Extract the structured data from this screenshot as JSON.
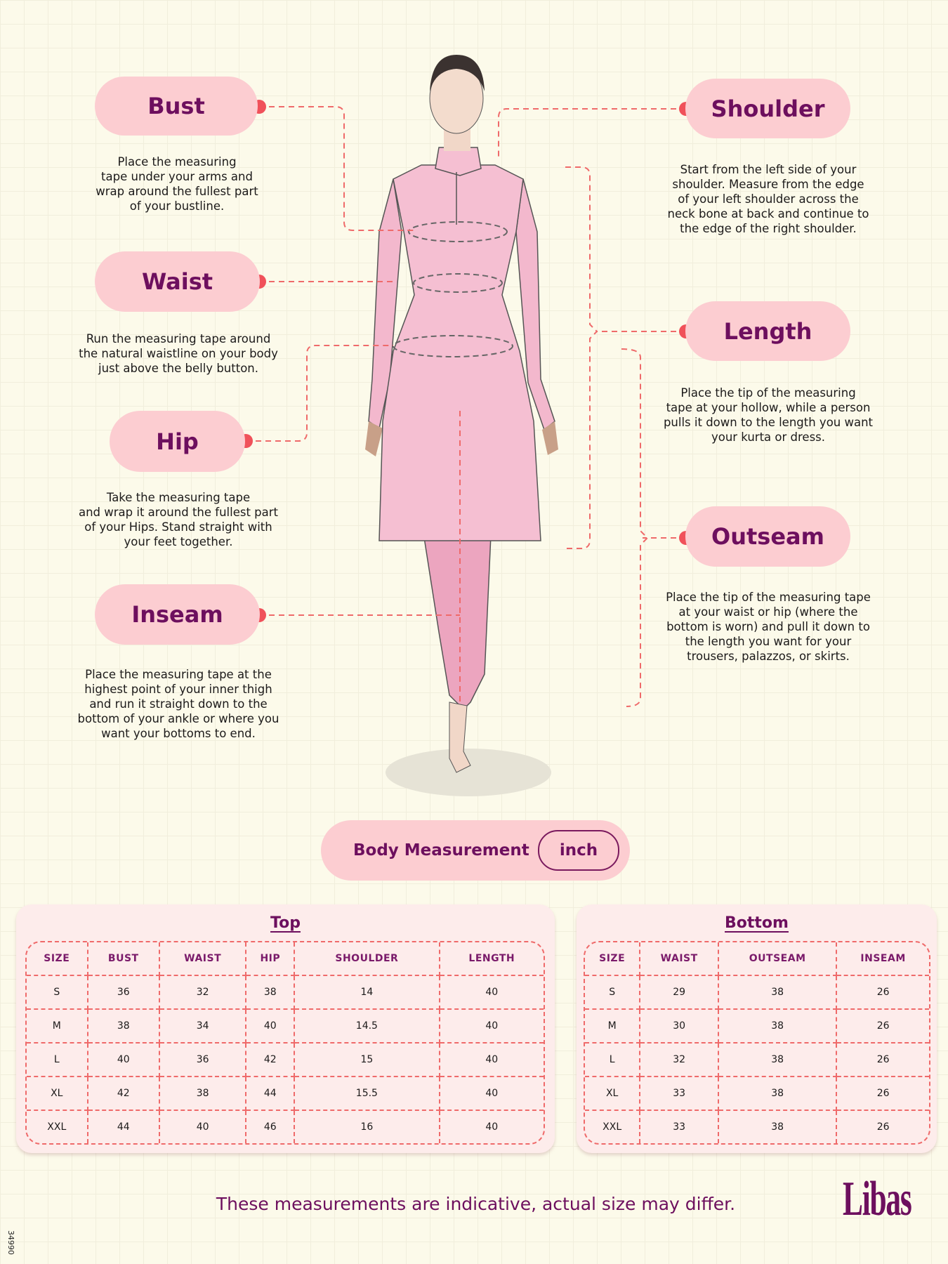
{
  "colors": {
    "accent": "#6d0f5e",
    "pill": "#fccdd1",
    "dot": "#f0515a",
    "dash": "#ef6a6a",
    "background": "#fcfaea"
  },
  "measures": {
    "bust": {
      "label": "Bust",
      "desc": [
        "Place the measuring",
        "tape under your arms and",
        "wrap around the fullest part",
        "of your bustline."
      ]
    },
    "waist": {
      "label": "Waist",
      "desc": [
        "Run the measuring tape around",
        "the natural waistline on your body",
        "just above the belly button."
      ]
    },
    "hip": {
      "label": "Hip",
      "desc": [
        "Take the measuring tape",
        "and wrap it around the fullest part",
        "of your Hips. Stand straight with",
        "your feet together."
      ]
    },
    "inseam": {
      "label": "Inseam",
      "desc": [
        "Place the measuring tape at the",
        "highest point of your inner thigh",
        "and run it straight down to the",
        "bottom of your ankle or where you",
        "want your bottoms to end."
      ]
    },
    "shoulder": {
      "label": "Shoulder",
      "desc": [
        "Start from the left side of your",
        "shoulder. Measure from the edge",
        "of your left shoulder across the",
        "neck bone at back and continue to",
        "the edge of the right shoulder."
      ]
    },
    "length": {
      "label": "Length",
      "desc": [
        "Place the tip of the measuring",
        "tape at your hollow, while a person",
        "pulls it down to the length you want",
        "your kurta or dress."
      ]
    },
    "outseam": {
      "label": "Outseam",
      "desc": [
        "Place the tip of the measuring tape",
        "at your waist or hip (where the",
        "bottom is worn) and pull it down to",
        "the length you want for your",
        "trousers, palazzos, or skirts."
      ]
    }
  },
  "body_measurement": {
    "label": "Body Measurement",
    "unit": "inch"
  },
  "top_table": {
    "title": "Top",
    "headers": [
      "SIZE",
      "BUST",
      "WAIST",
      "HIP",
      "SHOULDER",
      "LENGTH"
    ],
    "rows": [
      [
        "S",
        "36",
        "32",
        "38",
        "14",
        "40"
      ],
      [
        "M",
        "38",
        "34",
        "40",
        "14.5",
        "40"
      ],
      [
        "L",
        "40",
        "36",
        "42",
        "15",
        "40"
      ],
      [
        "XL",
        "42",
        "38",
        "44",
        "15.5",
        "40"
      ],
      [
        "XXL",
        "44",
        "40",
        "46",
        "16",
        "40"
      ]
    ]
  },
  "bottom_table": {
    "title": "Bottom",
    "headers": [
      "SIZE",
      "WAIST",
      "OUTSEAM",
      "INSEAM"
    ],
    "rows": [
      [
        "S",
        "29",
        "38",
        "26"
      ],
      [
        "M",
        "30",
        "38",
        "26"
      ],
      [
        "L",
        "32",
        "38",
        "26"
      ],
      [
        "XL",
        "33",
        "38",
        "26"
      ],
      [
        "XXL",
        "33",
        "38",
        "26"
      ]
    ]
  },
  "footer": {
    "note": "These measurements are indicative, actual size may differ.",
    "logo": "Libas",
    "code": "34990"
  }
}
